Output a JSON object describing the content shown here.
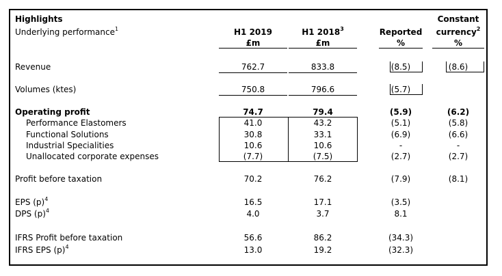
{
  "header": {
    "title": "Highlights",
    "subtitle": "Underlying performance",
    "subtitle_sup": "1",
    "col1": {
      "line1": "H1 2019",
      "line2": "£m"
    },
    "col2": {
      "line1": "H1 2018",
      "sup": "3",
      "line2": "£m"
    },
    "col3": {
      "line1": "Reported",
      "line2": "%"
    },
    "col4": {
      "line0": "Constant",
      "line1": "currency",
      "sup": "2",
      "line2": "%"
    }
  },
  "rows": {
    "revenue": {
      "label": "Revenue",
      "h1_2019": "762.7",
      "h1_2018": "833.8",
      "reported": "(8.5)",
      "constant": "(8.6)"
    },
    "volumes": {
      "label": "Volumes (ktes)",
      "h1_2019": "750.8",
      "h1_2018": "796.6",
      "reported": "(5.7)",
      "constant": ""
    },
    "operating_profit": {
      "label": "Operating profit",
      "h1_2019": "74.7",
      "h1_2018": "79.4",
      "reported": "(5.9)",
      "constant": "(6.2)"
    },
    "performance_elastomers": {
      "label": "Performance Elastomers",
      "h1_2019": "41.0",
      "h1_2018": "43.2",
      "reported": "(5.1)",
      "constant": "(5.8)"
    },
    "functional_solutions": {
      "label": "Functional Solutions",
      "h1_2019": "30.8",
      "h1_2018": "33.1",
      "reported": "(6.9)",
      "constant": "(6.6)"
    },
    "industrial_specialities": {
      "label": "Industrial Specialities",
      "h1_2019": "10.6",
      "h1_2018": "10.6",
      "reported": "-",
      "constant": "-"
    },
    "unallocated": {
      "label": "Unallocated corporate expenses",
      "h1_2019": "(7.7)",
      "h1_2018": "(7.5)",
      "reported": "(2.7)",
      "constant": "(2.7)"
    },
    "pbt": {
      "label": "Profit before taxation",
      "h1_2019": "70.2",
      "h1_2018": "76.2",
      "reported": "(7.9)",
      "constant": "(8.1)"
    },
    "eps": {
      "label": "EPS (p)",
      "sup": "4",
      "h1_2019": "16.5",
      "h1_2018": "17.1",
      "reported": "(3.5)"
    },
    "dps": {
      "label": "DPS (p)",
      "sup": "4",
      "h1_2019": "4.0",
      "h1_2018": "3.7",
      "reported": "8.1"
    },
    "ifrs_pbt": {
      "label": "IFRS Profit before taxation",
      "h1_2019": "56.6",
      "h1_2018": "86.2",
      "reported": "(34.3)"
    },
    "ifrs_eps": {
      "label": "IFRS EPS (p)",
      "sup": "4",
      "h1_2019": "13.0",
      "h1_2018": "19.2",
      "reported": "(32.3)"
    }
  }
}
